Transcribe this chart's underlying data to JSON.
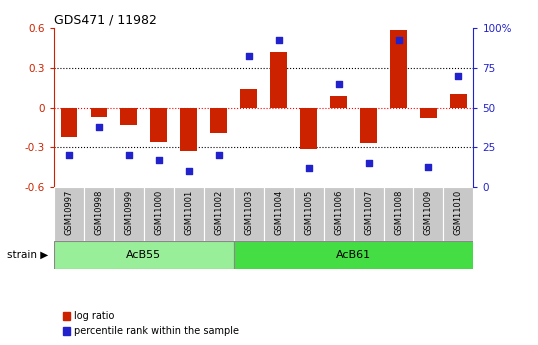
{
  "title": "GDS471 / 11982",
  "samples": [
    "GSM10997",
    "GSM10998",
    "GSM10999",
    "GSM11000",
    "GSM11001",
    "GSM11002",
    "GSM11003",
    "GSM11004",
    "GSM11005",
    "GSM11006",
    "GSM11007",
    "GSM11008",
    "GSM11009",
    "GSM11010"
  ],
  "log_ratio": [
    -0.22,
    -0.07,
    -0.13,
    -0.26,
    -0.33,
    -0.19,
    0.14,
    0.42,
    -0.31,
    0.09,
    -0.27,
    0.58,
    -0.08,
    0.1
  ],
  "percentile": [
    20,
    38,
    20,
    17,
    10,
    20,
    82,
    92,
    12,
    65,
    15,
    92,
    13,
    70
  ],
  "bar_color": "#cc2200",
  "dot_color": "#2222cc",
  "ylim_left": [
    -0.6,
    0.6
  ],
  "ylim_right": [
    0,
    100
  ],
  "yticks_left": [
    -0.6,
    -0.3,
    0.0,
    0.3,
    0.6
  ],
  "yticks_right": [
    0,
    25,
    50,
    75,
    100
  ],
  "ytick_labels_right": [
    "0",
    "25",
    "50",
    "75",
    "100%"
  ],
  "group1_label": "AcB55",
  "group1_count": 6,
  "group2_label": "AcB61",
  "group2_count": 8,
  "strain_label": "strain",
  "legend_labels": [
    "log ratio",
    "percentile rank within the sample"
  ],
  "bg_color": "#ffffff",
  "tick_bg_color": "#c8c8c8",
  "group1_color": "#99ee99",
  "group2_color": "#44dd44",
  "figsize": [
    5.38,
    3.45
  ],
  "dpi": 100
}
